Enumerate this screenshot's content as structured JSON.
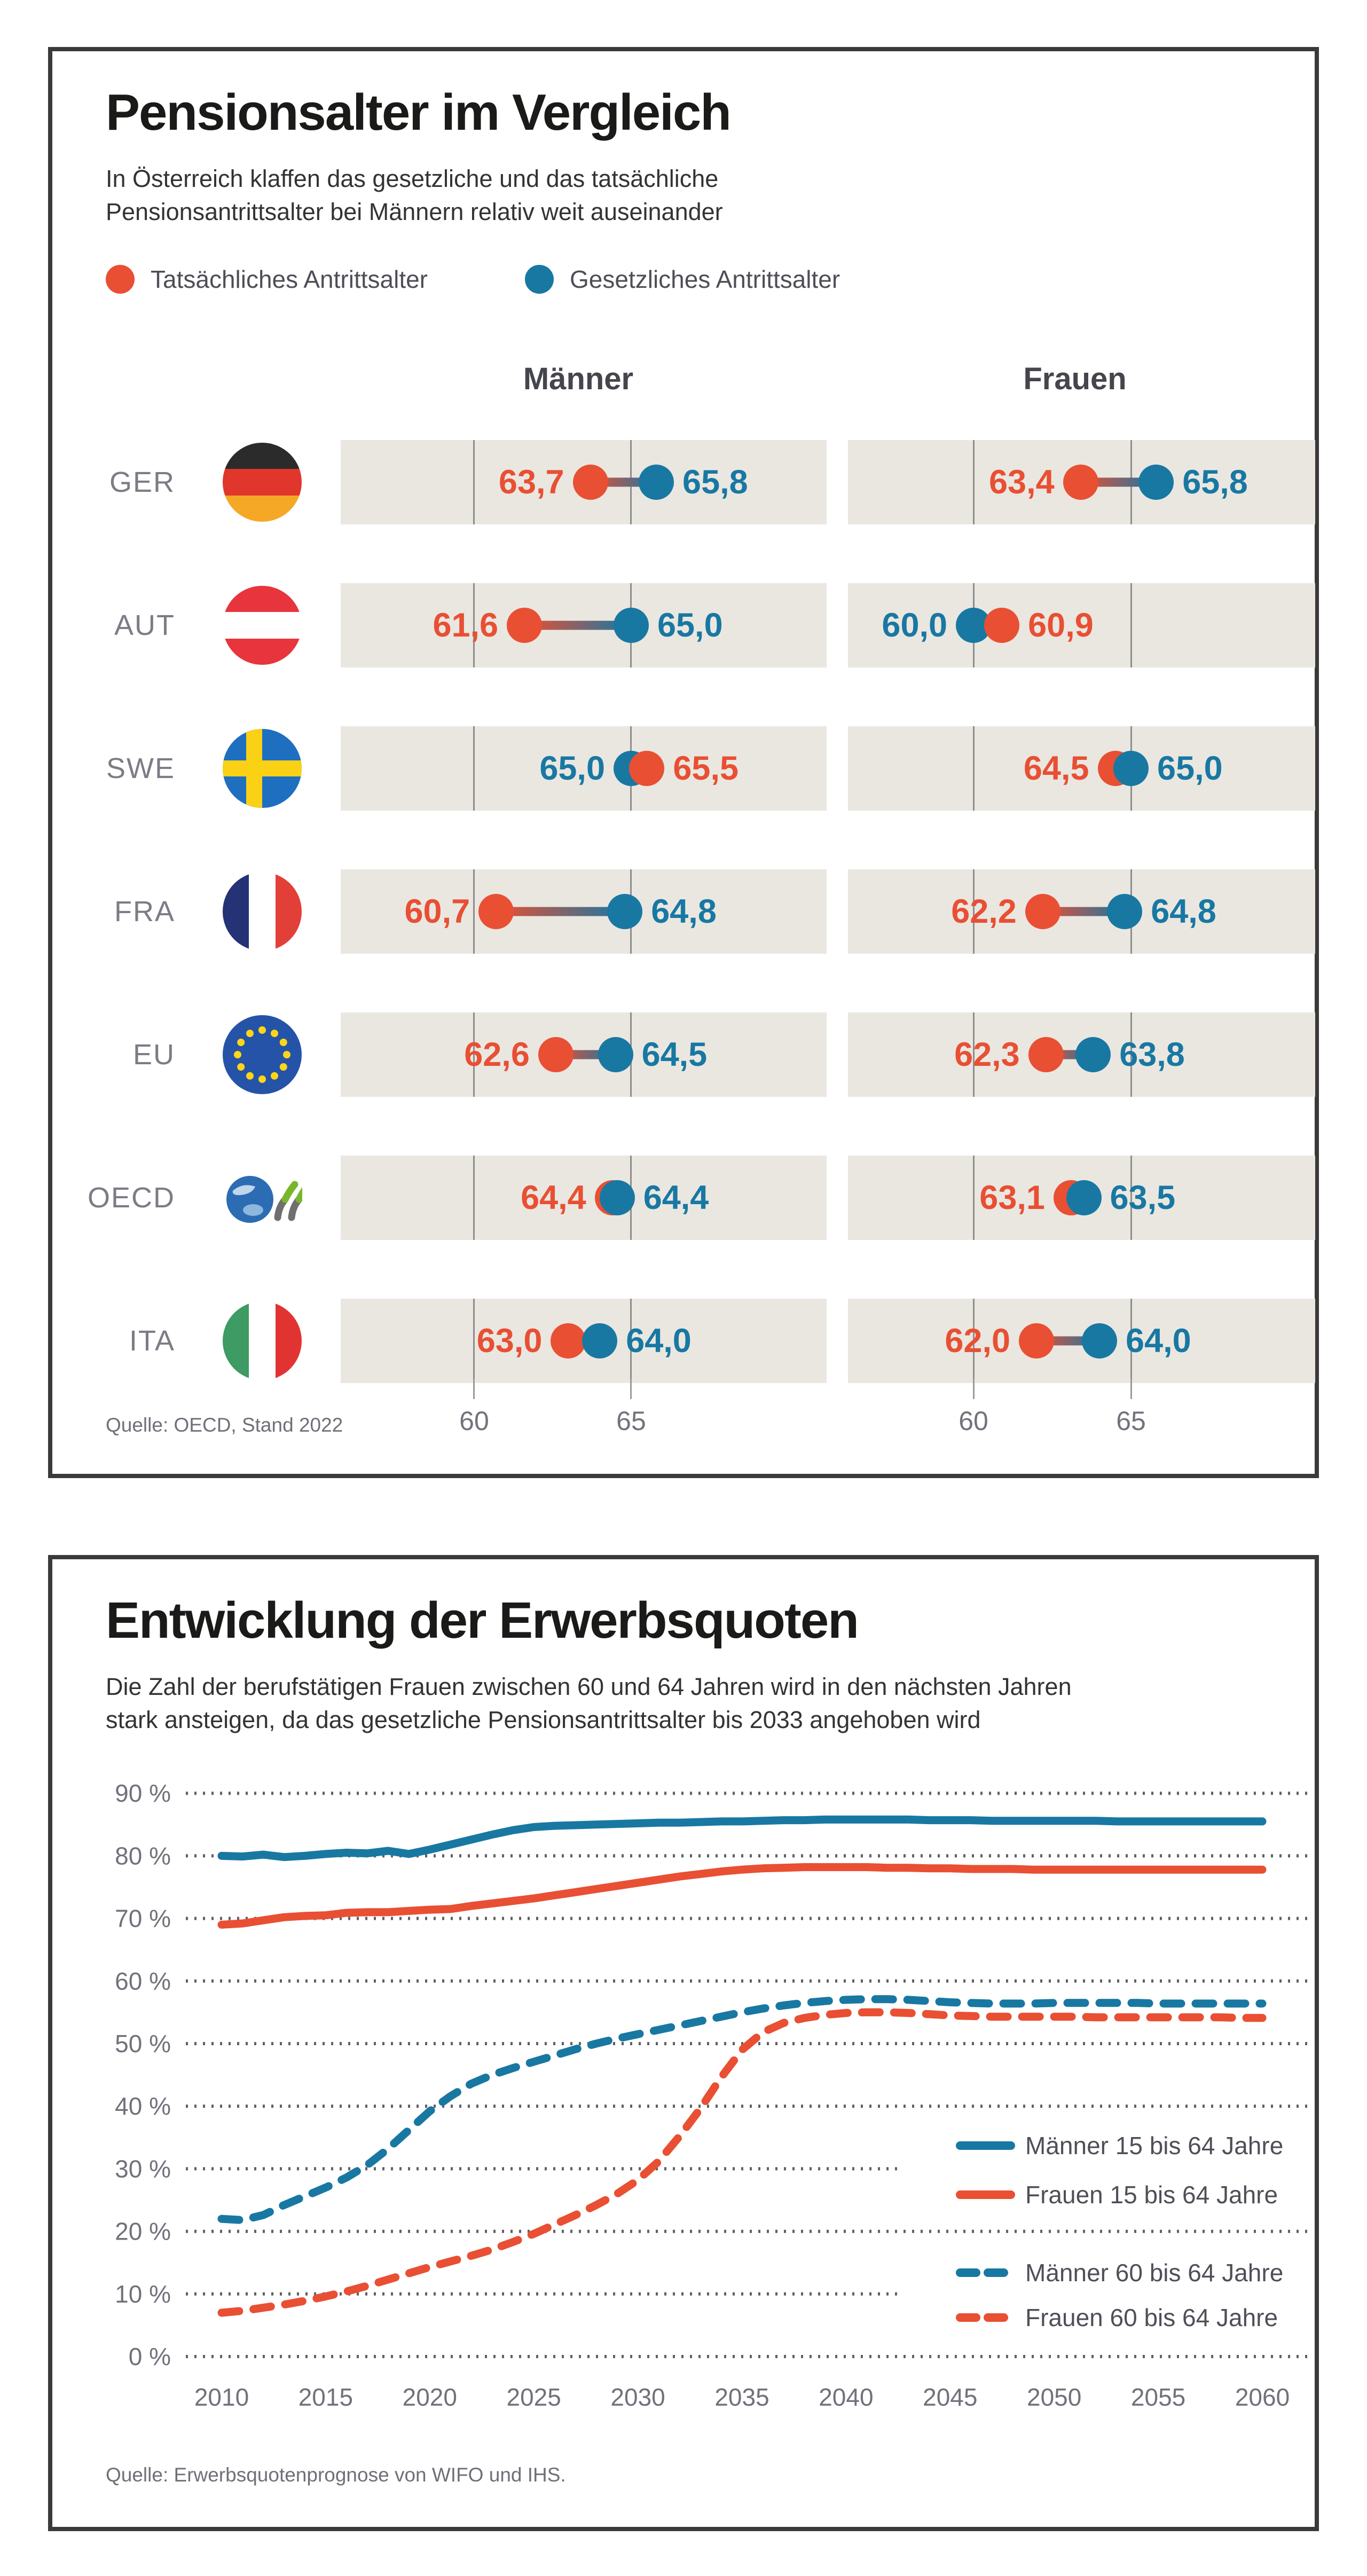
{
  "colors": {
    "actual_red": "#E94F33",
    "legal_blue": "#1878A2",
    "band_beige": "#EAE7E1",
    "card_border": "#3A3A3A",
    "grid_grey": "#8E8E8E"
  },
  "card1": {
    "title": "Pensionsalter im Vergleich",
    "subtitle_line1": "In Österreich klaffen das gesetzliche und das tatsächliche",
    "subtitle_line2": "Pensionsantrittsalter bei Männern relativ weit auseinander",
    "legend": [
      {
        "label": "Tatsächliches Antrittsalter",
        "color": "#E94F33"
      },
      {
        "label": "Gesetzliches Antrittsalter",
        "color": "#1878A2"
      }
    ],
    "col_headers": [
      "Männer",
      "Frauen"
    ],
    "axis_ticks": [
      "60",
      "65"
    ],
    "source": "Quelle: OECD, Stand 2022"
  },
  "card2": {
    "title": "Entwicklung der Erwerbsquoten",
    "subtitle_line1": "Die Zahl der berufstätigen Frauen zwischen 60 und 64 Jahren wird in den nächsten Jahren",
    "subtitle_line2": "stark ansteigen, da das gesetzliche Pensionsantrittsalter bis 2033 angehoben wird",
    "source": "Quelle: Erwerbsquotenprognose von WIFO und IHS."
  },
  "chart_data": [
    {
      "type": "dumbbell",
      "title": "Pensionsalter im Vergleich",
      "groups": [
        "Männer",
        "Frauen"
      ],
      "series_legend": [
        "Tatsächliches Antrittsalter",
        "Gesetzliches Antrittsalter"
      ],
      "axis": {
        "ticks": [
          60,
          65
        ],
        "range": [
          56,
          71
        ]
      },
      "rows": [
        {
          "country": "GER",
          "flag": "flag-ger",
          "maenner": {
            "tatsaechlich": 63.7,
            "gesetzlich": 65.8,
            "tatsaechlich_label": "63,7",
            "gesetzlich_label": "65,8"
          },
          "frauen": {
            "tatsaechlich": 63.4,
            "gesetzlich": 65.8,
            "tatsaechlich_label": "63,4",
            "gesetzlich_label": "65,8"
          }
        },
        {
          "country": "AUT",
          "flag": "flag-aut",
          "maenner": {
            "tatsaechlich": 61.6,
            "gesetzlich": 65.0,
            "tatsaechlich_label": "61,6",
            "gesetzlich_label": "65,0"
          },
          "frauen": {
            "tatsaechlich": 60.9,
            "gesetzlich": 60.0,
            "tatsaechlich_label": "60,9",
            "gesetzlich_label": "60,0"
          }
        },
        {
          "country": "SWE",
          "flag": "flag-swe",
          "maenner": {
            "tatsaechlich": 65.5,
            "gesetzlich": 65.0,
            "tatsaechlich_label": "65,5",
            "gesetzlich_label": "65,0"
          },
          "frauen": {
            "tatsaechlich": 64.5,
            "gesetzlich": 65.0,
            "tatsaechlich_label": "64,5",
            "gesetzlich_label": "65,0"
          }
        },
        {
          "country": "FRA",
          "flag": "flag-fra",
          "maenner": {
            "tatsaechlich": 60.7,
            "gesetzlich": 64.8,
            "tatsaechlich_label": "60,7",
            "gesetzlich_label": "64,8"
          },
          "frauen": {
            "tatsaechlich": 62.2,
            "gesetzlich": 64.8,
            "tatsaechlich_label": "62,2",
            "gesetzlich_label": "64,8"
          }
        },
        {
          "country": "EU",
          "flag": "flag-eu",
          "maenner": {
            "tatsaechlich": 62.6,
            "gesetzlich": 64.5,
            "tatsaechlich_label": "62,6",
            "gesetzlich_label": "64,5"
          },
          "frauen": {
            "tatsaechlich": 62.3,
            "gesetzlich": 63.8,
            "tatsaechlich_label": "62,3",
            "gesetzlich_label": "63,8"
          }
        },
        {
          "country": "OECD",
          "flag": "logo-oecd",
          "maenner": {
            "tatsaechlich": 64.4,
            "gesetzlich": 64.4,
            "tatsaechlich_label": "64,4",
            "gesetzlich_label": "64,4"
          },
          "frauen": {
            "tatsaechlich": 63.1,
            "gesetzlich": 63.5,
            "tatsaechlich_label": "63,1",
            "gesetzlich_label": "63,5"
          }
        },
        {
          "country": "ITA",
          "flag": "flag-ita",
          "maenner": {
            "tatsaechlich": 63.0,
            "gesetzlich": 64.0,
            "tatsaechlich_label": "63,0",
            "gesetzlich_label": "64,0"
          },
          "frauen": {
            "tatsaechlich": 62.0,
            "gesetzlich": 64.0,
            "tatsaechlich_label": "62,0",
            "gesetzlich_label": "64,0"
          }
        }
      ]
    },
    {
      "type": "line",
      "title": "Entwicklung der Erwerbsquoten",
      "x_start": 2010,
      "x_step": 1,
      "x_ticks": [
        2010,
        2015,
        2020,
        2025,
        2030,
        2035,
        2040,
        2045,
        2050,
        2055,
        2060
      ],
      "y_tick_labels": [
        "90 %",
        "80 %",
        "70 %",
        "60 %",
        "50 %",
        "40 %",
        "30 %",
        "20 %",
        "10 %",
        "0 %"
      ],
      "ylim": [
        0,
        90
      ],
      "grid": "dotted horizontal",
      "legend_position": "inside right",
      "series": [
        {
          "name": "Männer 15 bis 64 Jahre",
          "color": "#1878A2",
          "dash": false,
          "values": [
            80.0,
            79.9,
            80.2,
            79.8,
            80.0,
            80.3,
            80.5,
            80.4,
            80.8,
            80.3,
            81.0,
            81.8,
            82.6,
            83.4,
            84.1,
            84.6,
            84.8,
            84.9,
            85.0,
            85.1,
            85.2,
            85.3,
            85.3,
            85.4,
            85.5,
            85.5,
            85.6,
            85.7,
            85.7,
            85.8,
            85.8,
            85.8,
            85.8,
            85.8,
            85.7,
            85.7,
            85.7,
            85.6,
            85.6,
            85.6,
            85.6,
            85.6,
            85.6,
            85.5,
            85.5,
            85.5,
            85.5,
            85.5,
            85.5,
            85.5,
            85.5
          ]
        },
        {
          "name": "Frauen 15 bis 64 Jahre",
          "color": "#E94F33",
          "dash": false,
          "values": [
            69.0,
            69.2,
            69.7,
            70.2,
            70.4,
            70.5,
            70.9,
            71.0,
            71.0,
            71.2,
            71.4,
            71.5,
            72.0,
            72.4,
            72.8,
            73.2,
            73.7,
            74.2,
            74.7,
            75.2,
            75.7,
            76.2,
            76.7,
            77.1,
            77.5,
            77.8,
            78.0,
            78.1,
            78.2,
            78.2,
            78.2,
            78.2,
            78.1,
            78.1,
            78.0,
            78.0,
            77.9,
            77.9,
            77.9,
            77.8,
            77.8,
            77.8,
            77.8,
            77.8,
            77.8,
            77.8,
            77.8,
            77.8,
            77.8,
            77.8,
            77.8
          ]
        },
        {
          "name": "Männer 60 bis 64 Jahre",
          "color": "#1878A2",
          "dash": true,
          "values": [
            22.0,
            21.8,
            22.6,
            24.2,
            25.6,
            27.0,
            28.6,
            30.6,
            33.2,
            36.2,
            39.2,
            41.6,
            43.6,
            45.0,
            46.1,
            47.1,
            48.1,
            49.1,
            50.0,
            50.8,
            51.5,
            52.2,
            52.9,
            53.6,
            54.3,
            55.0,
            55.6,
            56.1,
            56.5,
            56.8,
            57.0,
            57.1,
            57.1,
            57.0,
            56.8,
            56.6,
            56.5,
            56.4,
            56.4,
            56.4,
            56.5,
            56.5,
            56.5,
            56.5,
            56.5,
            56.4,
            56.4,
            56.4,
            56.4,
            56.4,
            56.4
          ]
        },
        {
          "name": "Frauen 60 bis 64 Jahre",
          "color": "#E94F33",
          "dash": true,
          "values": [
            7.0,
            7.3,
            7.8,
            8.3,
            8.9,
            9.6,
            10.4,
            11.3,
            12.3,
            13.3,
            14.3,
            15.2,
            16.1,
            17.1,
            18.3,
            19.6,
            21.1,
            22.6,
            24.2,
            26.0,
            28.2,
            31.2,
            35.2,
            39.6,
            44.6,
            49.0,
            51.8,
            53.3,
            54.1,
            54.6,
            54.9,
            55.0,
            55.0,
            54.9,
            54.7,
            54.5,
            54.4,
            54.3,
            54.3,
            54.3,
            54.3,
            54.3,
            54.2,
            54.2,
            54.2,
            54.2,
            54.2,
            54.2,
            54.2,
            54.1,
            54.1
          ]
        }
      ]
    }
  ]
}
